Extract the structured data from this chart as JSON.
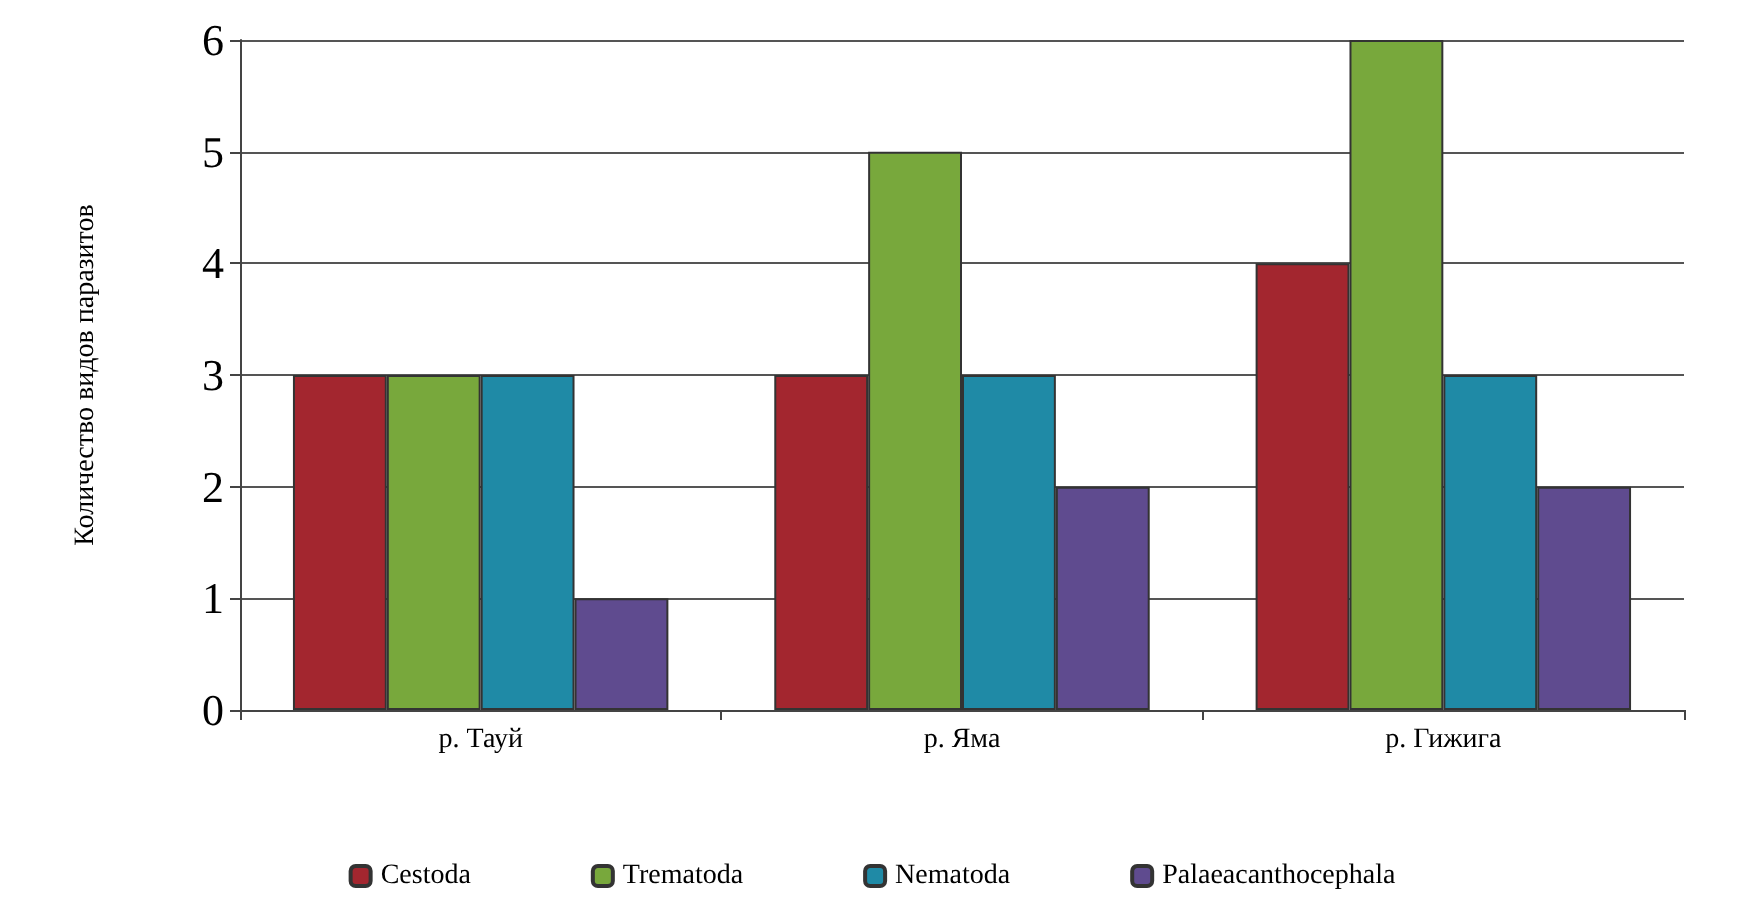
{
  "chart_data": {
    "type": "bar",
    "ylabel": "Количество видов паразитов",
    "categories": [
      "р. Тауй",
      "р. Яма",
      "р. Гижига"
    ],
    "series": [
      {
        "name": "Cestoda",
        "color": "#a3262f",
        "values": [
          3,
          3,
          4
        ]
      },
      {
        "name": "Trematoda",
        "color": "#78a83c",
        "values": [
          3,
          5,
          6
        ]
      },
      {
        "name": "Nematoda",
        "color": "#1f8aa6",
        "values": [
          3,
          3,
          3
        ]
      },
      {
        "name": "Palaeacanthocephala",
        "color": "#5f4b8f",
        "values": [
          1,
          2,
          2
        ]
      }
    ],
    "ylim": [
      0,
      6
    ],
    "yticks": [
      0,
      1,
      2,
      3,
      4,
      5,
      6
    ],
    "grid": "y",
    "legend": "bottom"
  }
}
